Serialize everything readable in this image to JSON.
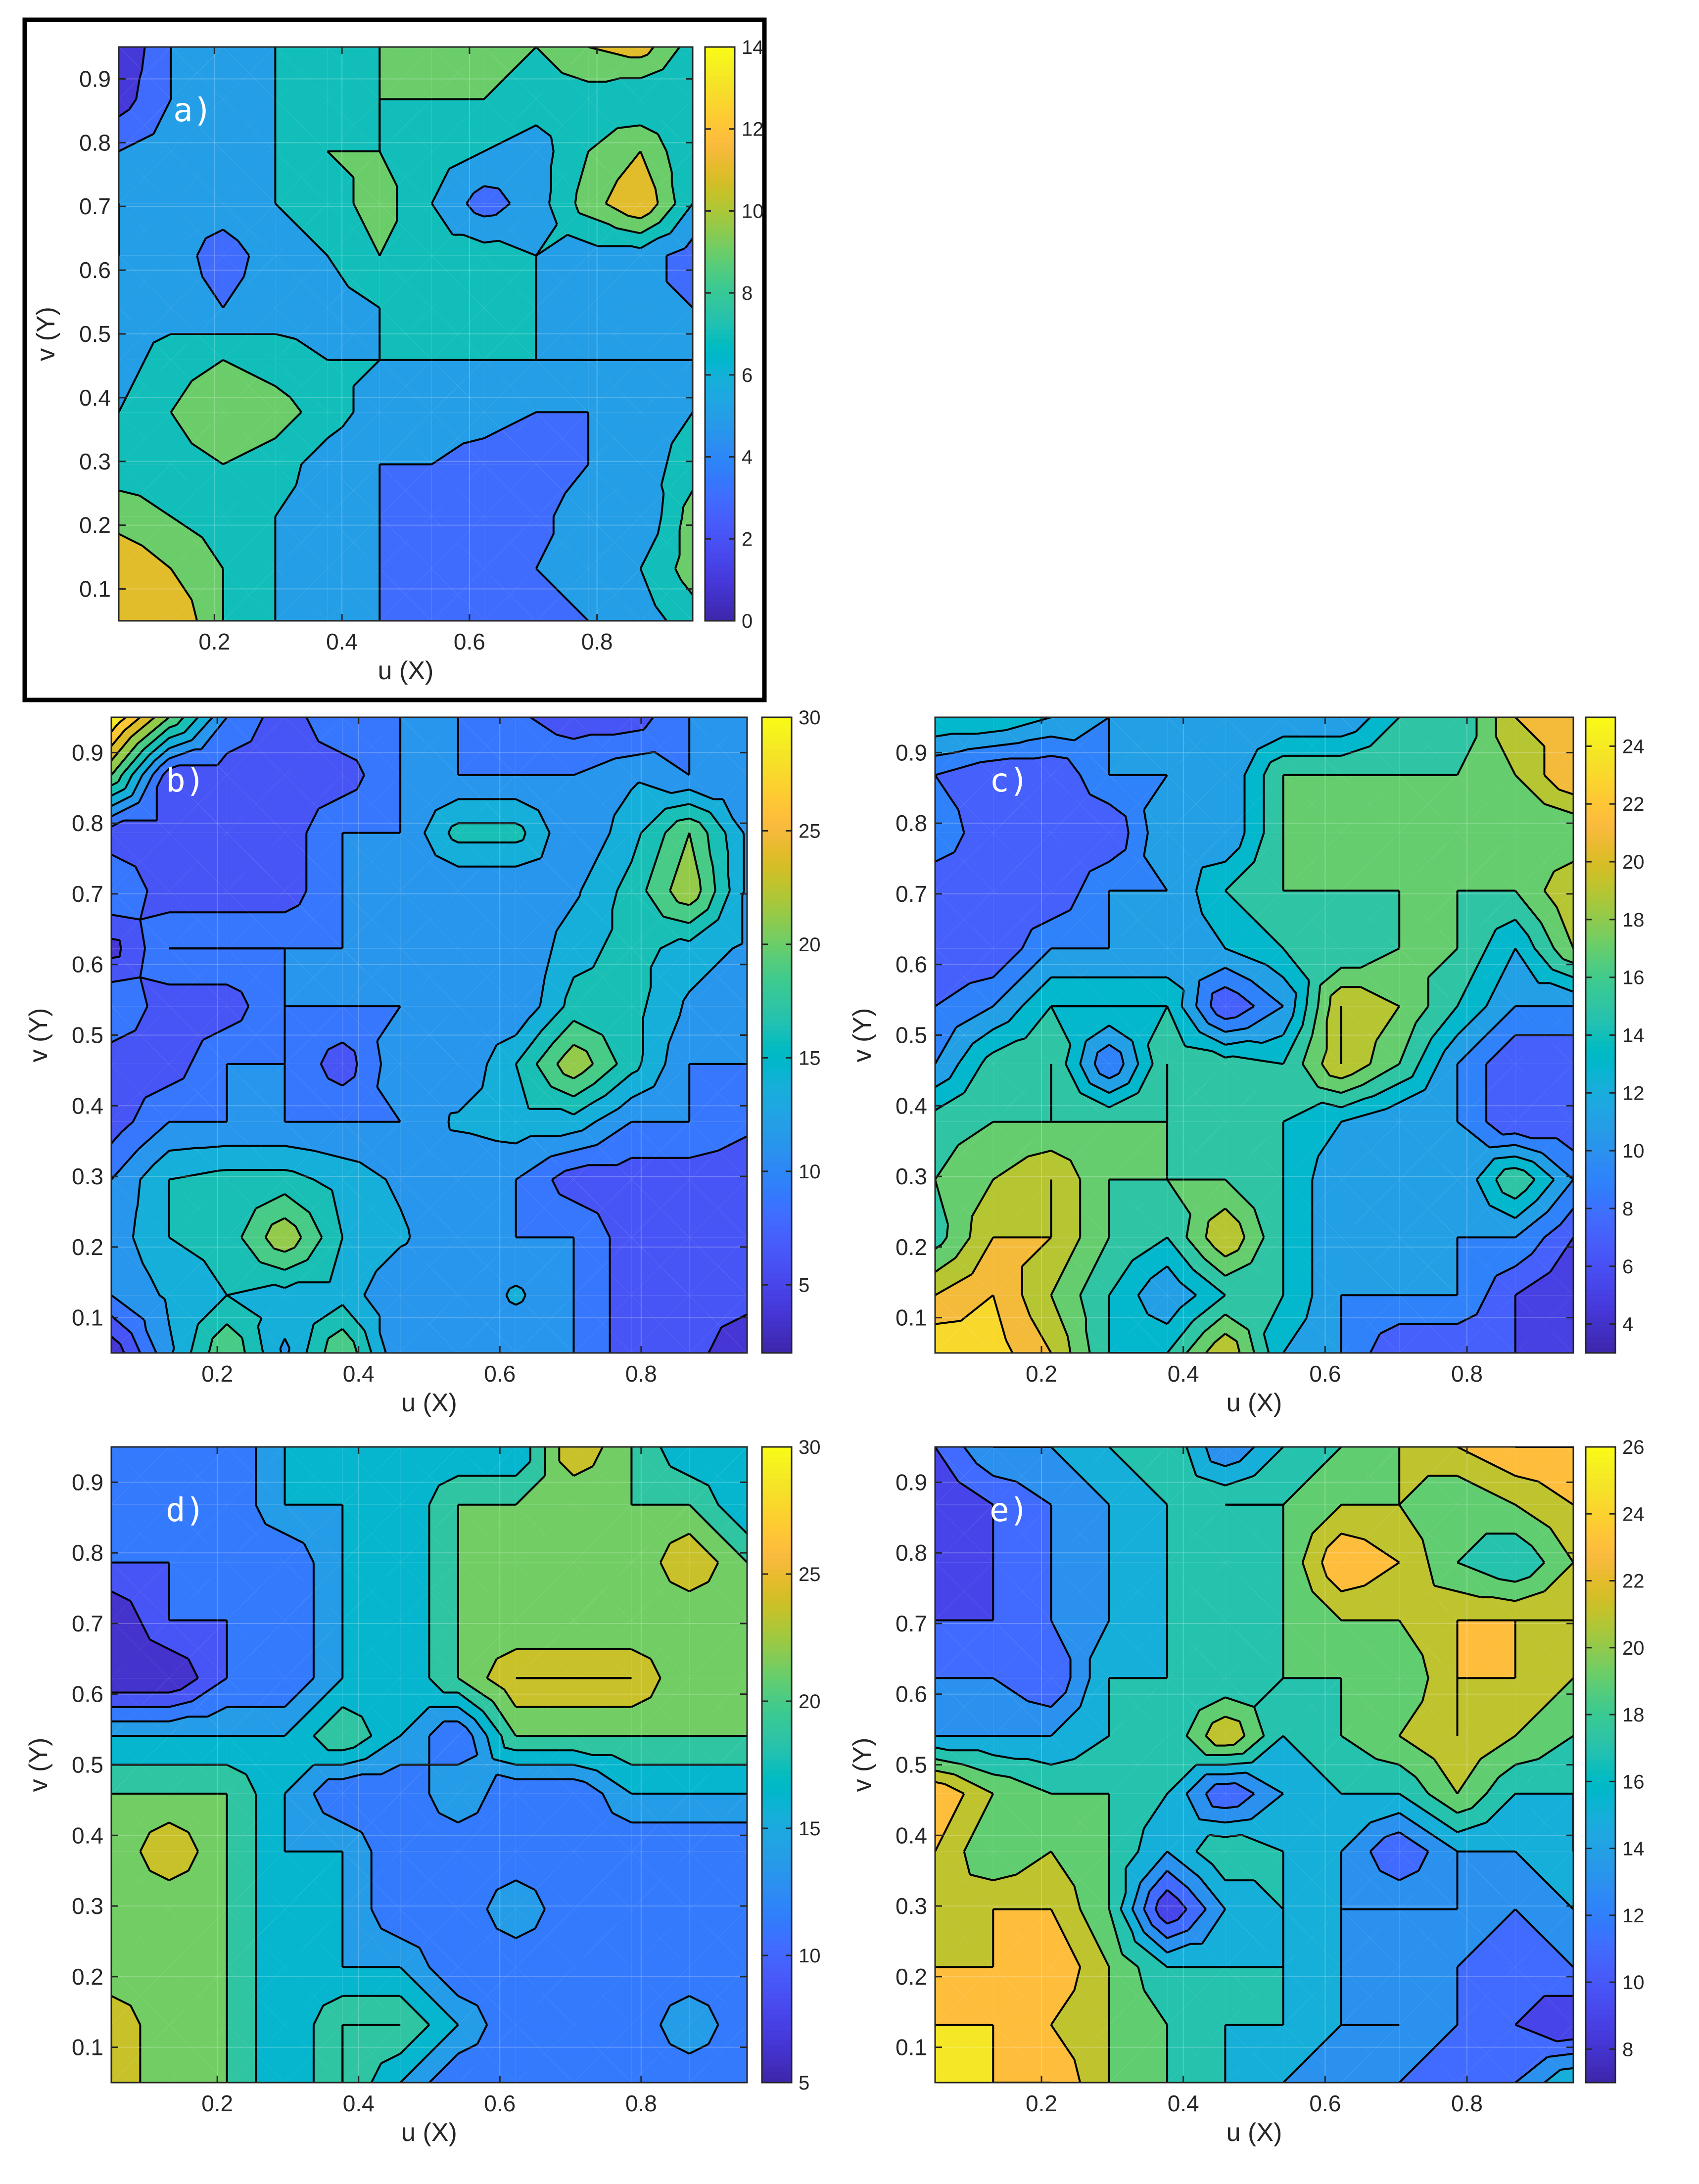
{
  "chart_data": [
    {
      "type": "contour",
      "panel_label": "a)",
      "xlabel": "u (X)",
      "ylabel": "v (Y)",
      "xlim": [
        0.05,
        0.95
      ],
      "ylim": [
        0.05,
        0.95
      ],
      "xticks": [
        0.2,
        0.4,
        0.6,
        0.8
      ],
      "yticks": [
        0.1,
        0.2,
        0.3,
        0.4,
        0.5,
        0.6,
        0.7,
        0.8,
        0.9
      ],
      "colorbar": {
        "range": [
          0,
          14
        ],
        "ticks": [
          0,
          2,
          4,
          6,
          8,
          10,
          12,
          14
        ]
      },
      "boxed": true,
      "grid": [
        [
          11,
          12,
          8,
          6,
          6,
          4,
          3,
          2,
          3,
          4,
          5,
          7
        ],
        [
          12,
          10,
          8,
          6,
          5,
          4,
          3,
          3,
          4,
          5,
          6,
          9
        ],
        [
          9,
          8,
          7,
          6,
          5,
          4,
          3,
          2,
          3,
          6,
          4,
          9
        ],
        [
          7,
          7,
          8,
          7,
          5,
          4,
          4,
          3,
          2,
          4,
          5,
          7
        ],
        [
          6,
          8,
          10,
          9,
          7,
          5,
          5,
          5,
          4,
          4,
          5,
          6
        ],
        [
          5,
          7,
          8,
          7,
          6,
          6,
          6,
          6,
          6,
          6,
          6,
          6
        ],
        [
          5,
          5,
          4,
          5,
          5,
          6,
          8,
          7,
          6,
          5,
          4,
          4
        ],
        [
          6,
          5,
          3,
          5,
          6,
          8,
          7,
          7,
          6,
          5,
          5,
          3
        ],
        [
          6,
          5,
          5,
          6,
          7,
          9,
          6,
          3,
          5,
          9,
          12,
          6
        ],
        [
          4,
          5,
          5,
          6,
          8,
          8,
          7,
          6,
          5,
          8,
          10,
          6
        ],
        [
          1,
          4,
          5,
          6,
          7,
          8,
          8,
          8,
          7,
          7,
          6,
          6
        ],
        [
          0,
          4,
          5,
          6,
          7,
          8,
          9,
          9,
          8,
          10,
          11,
          7
        ]
      ]
    },
    {
      "type": "contour",
      "panel_label": "b)",
      "xlabel": "u (X)",
      "ylabel": "v (Y)",
      "xlim": [
        0.05,
        0.95
      ],
      "ylim": [
        0.05,
        0.95
      ],
      "xticks": [
        0.2,
        0.4,
        0.6,
        0.8
      ],
      "yticks": [
        0.1,
        0.2,
        0.3,
        0.4,
        0.5,
        0.6,
        0.7,
        0.8,
        0.9
      ],
      "colorbar": {
        "range": [
          2,
          30
        ],
        "ticks": [
          5,
          10,
          15,
          20,
          25,
          30
        ]
      },
      "boxed": false,
      "grid": [
        [
          3,
          12,
          20,
          12,
          20,
          10,
          10,
          10,
          10,
          6,
          6,
          3
        ],
        [
          10,
          13,
          15,
          14,
          14,
          10,
          10,
          13,
          10,
          6,
          6,
          6
        ],
        [
          11,
          15,
          16,
          22,
          15,
          13,
          10,
          10,
          10,
          6,
          6,
          6
        ],
        [
          10,
          15,
          16,
          16,
          14,
          12,
          10,
          10,
          6,
          6,
          6,
          6
        ],
        [
          6,
          10,
          10,
          10,
          10,
          10,
          13,
          14,
          14,
          10,
          10,
          8
        ],
        [
          6,
          6,
          10,
          10,
          6,
          12,
          10,
          15,
          22,
          16,
          10,
          10
        ],
        [
          10,
          6,
          6,
          10,
          10,
          10,
          10,
          10,
          16,
          16,
          12,
          10
        ],
        [
          4,
          10,
          10,
          10,
          10,
          10,
          10,
          10,
          14,
          16,
          14,
          12
        ],
        [
          10,
          6,
          6,
          6,
          10,
          10,
          10,
          10,
          12,
          16,
          22,
          12
        ],
        [
          6,
          6,
          6,
          6,
          10,
          10,
          16,
          16,
          10,
          14,
          20,
          12
        ],
        [
          20,
          6,
          6,
          6,
          6,
          10,
          10,
          10,
          10,
          12,
          10,
          10
        ],
        [
          30,
          20,
          10,
          6,
          10,
          10,
          10,
          8,
          6,
          6,
          10,
          12
        ]
      ]
    },
    {
      "type": "contour",
      "panel_label": "c)",
      "xlabel": "u (X)",
      "ylabel": "v (Y)",
      "xlim": [
        0.05,
        0.95
      ],
      "ylim": [
        0.05,
        0.95
      ],
      "xticks": [
        0.2,
        0.4,
        0.6,
        0.8
      ],
      "yticks": [
        0.1,
        0.2,
        0.3,
        0.4,
        0.5,
        0.6,
        0.7,
        0.8,
        0.9
      ],
      "colorbar": {
        "range": [
          3,
          25
        ],
        "ticks": [
          4,
          6,
          8,
          10,
          12,
          14,
          16,
          18,
          20,
          22,
          24
        ]
      },
      "boxed": false,
      "grid": [
        [
          24,
          23,
          20,
          14,
          14,
          20,
          12,
          10,
          6,
          6,
          6,
          4
        ],
        [
          20,
          22,
          18,
          14,
          10,
          14,
          14,
          10,
          10,
          10,
          6,
          4
        ],
        [
          15,
          20,
          20,
          16,
          14,
          20,
          14,
          10,
          10,
          10,
          10,
          6
        ],
        [
          16,
          18,
          20,
          16,
          16,
          16,
          14,
          10,
          10,
          10,
          16,
          10
        ],
        [
          15,
          16,
          16,
          16,
          16,
          14,
          14,
          12,
          10,
          10,
          6,
          6
        ],
        [
          10,
          15,
          16,
          8,
          16,
          15,
          14,
          20,
          16,
          10,
          6,
          6
        ],
        [
          8,
          10,
          14,
          14,
          14,
          6,
          10,
          20,
          18,
          14,
          10,
          10
        ],
        [
          6,
          6,
          10,
          10,
          10,
          12,
          14,
          14,
          16,
          16,
          12,
          18
        ],
        [
          6,
          6,
          6,
          10,
          10,
          14,
          16,
          16,
          16,
          16,
          16,
          20
        ],
        [
          10,
          6,
          6,
          6,
          12,
          10,
          16,
          16,
          16,
          16,
          16,
          16
        ],
        [
          8,
          6,
          6,
          10,
          10,
          10,
          16,
          16,
          16,
          16,
          18,
          22
        ],
        [
          14,
          14,
          12,
          10,
          10,
          10,
          10,
          10,
          14,
          14,
          20,
          20
        ]
      ]
    },
    {
      "type": "contour",
      "panel_label": "d)",
      "xlabel": "u (X)",
      "ylabel": "v (Y)",
      "xlim": [
        0.05,
        0.95
      ],
      "ylim": [
        0.05,
        0.95
      ],
      "xticks": [
        0.2,
        0.4,
        0.6,
        0.8
      ],
      "yticks": [
        0.1,
        0.2,
        0.3,
        0.4,
        0.5,
        0.6,
        0.7,
        0.8,
        0.9
      ],
      "colorbar": {
        "range": [
          5,
          30
        ],
        "ticks": [
          5,
          10,
          15,
          20,
          25,
          30
        ]
      },
      "boxed": false,
      "grid": [
        [
          25,
          20,
          20,
          15,
          20,
          15,
          10,
          10,
          10,
          10,
          10,
          10
        ],
        [
          25,
          20,
          20,
          15,
          20,
          20,
          15,
          10,
          10,
          10,
          15,
          10
        ],
        [
          20,
          20,
          20,
          15,
          15,
          15,
          10,
          10,
          10,
          10,
          10,
          10
        ],
        [
          20,
          20,
          20,
          15,
          15,
          10,
          10,
          15,
          10,
          10,
          10,
          10
        ],
        [
          20,
          25,
          20,
          15,
          15,
          10,
          10,
          10,
          10,
          10,
          10,
          10
        ],
        [
          20,
          20,
          20,
          15,
          10,
          10,
          15,
          10,
          10,
          15,
          15,
          15
        ],
        [
          15,
          15,
          15,
          15,
          20,
          15,
          10,
          20,
          20,
          20,
          20,
          20
        ],
        [
          5,
          5,
          10,
          10,
          15,
          15,
          20,
          25,
          25,
          25,
          20,
          20
        ],
        [
          5,
          10,
          10,
          10,
          15,
          15,
          20,
          20,
          20,
          20,
          20,
          20
        ],
        [
          10,
          10,
          10,
          10,
          15,
          15,
          20,
          20,
          20,
          20,
          25,
          20
        ],
        [
          10,
          10,
          10,
          15,
          15,
          15,
          20,
          20,
          20,
          20,
          20,
          15
        ],
        [
          10,
          10,
          10,
          15,
          15,
          15,
          15,
          15,
          25,
          20,
          15,
          15
        ]
      ]
    },
    {
      "type": "contour",
      "panel_label": "e)",
      "xlabel": "u (X)",
      "ylabel": "v (Y)",
      "xlim": [
        0.05,
        0.95
      ],
      "ylim": [
        0.05,
        0.95
      ],
      "xticks": [
        0.2,
        0.4,
        0.6,
        0.8
      ],
      "yticks": [
        0.1,
        0.2,
        0.3,
        0.4,
        0.5,
        0.6,
        0.7,
        0.8,
        0.9
      ],
      "colorbar": {
        "range": [
          7,
          26
        ],
        "ticks": [
          8,
          10,
          12,
          14,
          16,
          18,
          20,
          22,
          24,
          26
        ]
      },
      "boxed": false,
      "grid": [
        [
          26,
          24,
          24,
          20,
          18,
          16,
          14,
          12,
          12,
          10,
          12,
          16
        ],
        [
          24,
          24,
          22,
          20,
          18,
          16,
          16,
          14,
          14,
          12,
          10,
          8
        ],
        [
          22,
          22,
          24,
          20,
          16,
          16,
          16,
          14,
          12,
          12,
          10,
          12
        ],
        [
          20,
          22,
          22,
          18,
          8,
          14,
          16,
          14,
          14,
          14,
          12,
          14
        ],
        [
          22,
          18,
          20,
          18,
          14,
          18,
          16,
          14,
          10,
          14,
          14,
          16
        ],
        [
          24,
          20,
          18,
          18,
          16,
          10,
          14,
          16,
          16,
          20,
          16,
          16
        ],
        [
          14,
          14,
          14,
          16,
          16,
          22,
          16,
          18,
          20,
          22,
          20,
          18
        ],
        [
          12,
          12,
          10,
          16,
          16,
          16,
          18,
          18,
          18,
          22,
          22,
          20
        ],
        [
          10,
          10,
          12,
          14,
          16,
          16,
          18,
          20,
          20,
          22,
          22,
          22
        ],
        [
          8,
          10,
          12,
          14,
          16,
          16,
          18,
          24,
          22,
          18,
          16,
          20
        ],
        [
          8,
          10,
          12,
          14,
          16,
          18,
          18,
          20,
          20,
          18,
          20,
          22
        ],
        [
          10,
          14,
          14,
          16,
          18,
          12,
          16,
          18,
          20,
          22,
          24,
          24
        ]
      ]
    }
  ]
}
